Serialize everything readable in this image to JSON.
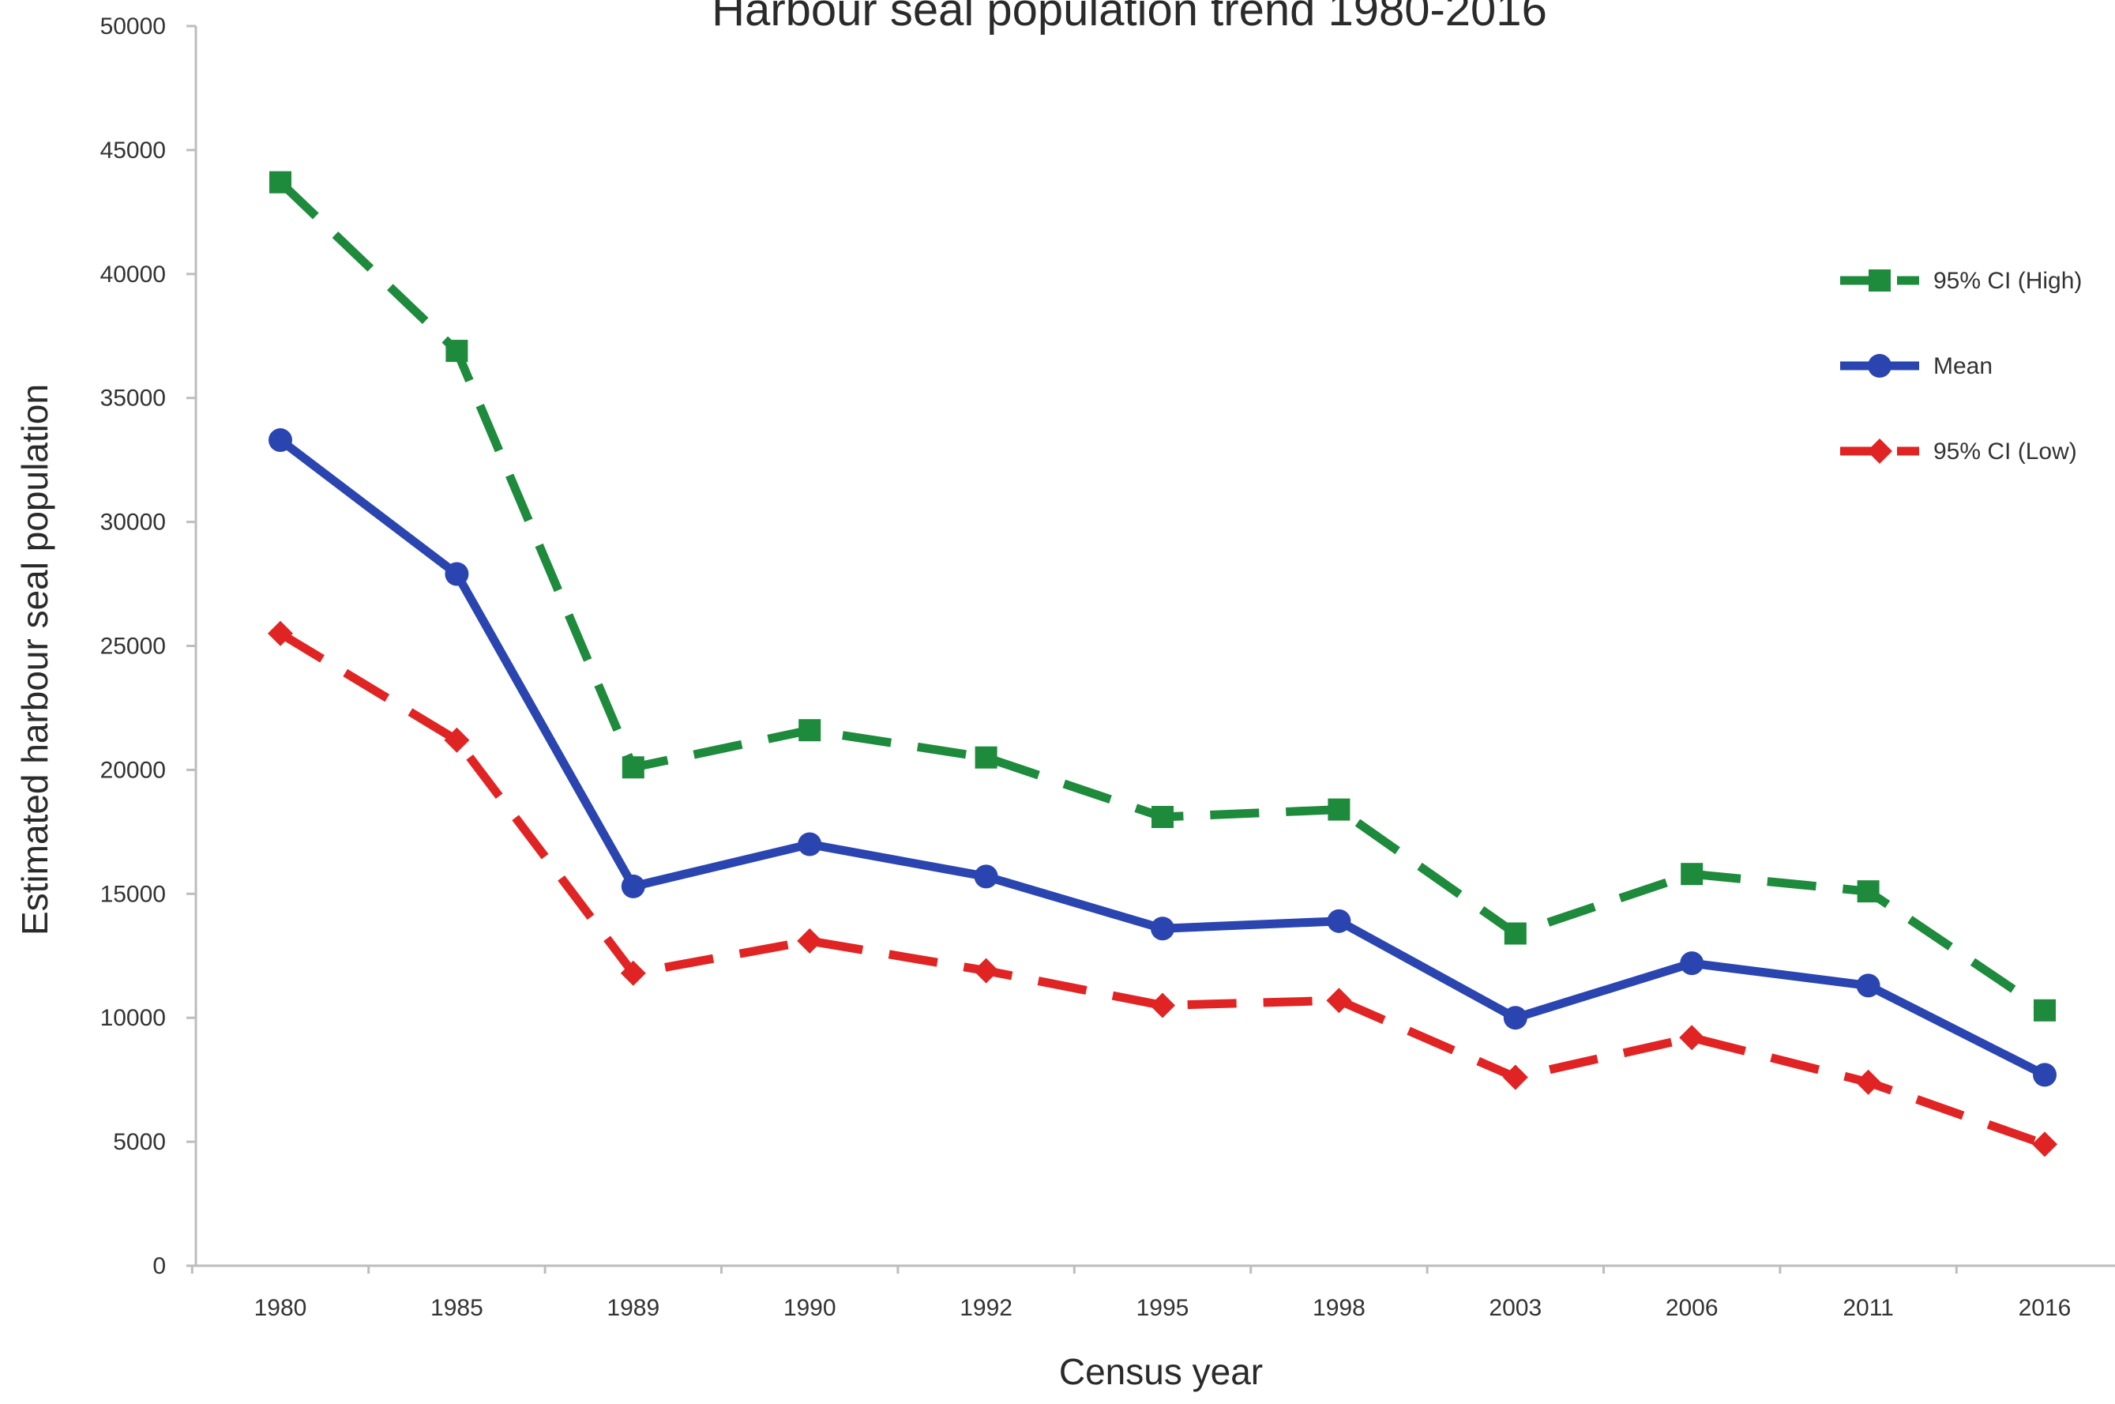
{
  "chart_data": {
    "type": "line",
    "title": "Harbour seal population trend 1980-2016",
    "xlabel": "Census year",
    "ylabel": "Estimated harbour seal population",
    "categories": [
      "1980",
      "1985",
      "1989",
      "1990",
      "1992",
      "1995",
      "1998",
      "2003",
      "2006",
      "2011",
      "2016"
    ],
    "ylim": [
      0,
      50000
    ],
    "yticks": [
      "0",
      "5000",
      "10000",
      "15000",
      "20000",
      "25000",
      "30000",
      "35000",
      "40000",
      "45000",
      "50000"
    ],
    "grid": false,
    "legend_position": "right",
    "series": [
      {
        "name": "95% CI (High)",
        "color": "#1e8a3c",
        "style": "dashed",
        "marker": "square",
        "values": [
          43700,
          36900,
          20100,
          21600,
          20500,
          18100,
          18400,
          13400,
          15800,
          15100,
          10300
        ]
      },
      {
        "name": "Mean",
        "color": "#2b45b0",
        "style": "solid",
        "marker": "circle",
        "values": [
          33300,
          27900,
          15300,
          17000,
          15700,
          13600,
          13900,
          10000,
          12200,
          11300,
          7700
        ]
      },
      {
        "name": "95% CI (Low)",
        "color": "#e02424",
        "style": "dashed",
        "marker": "diamond",
        "values": [
          25500,
          21200,
          11800,
          13100,
          11900,
          10500,
          10700,
          7600,
          9200,
          7400,
          4900
        ]
      }
    ]
  }
}
